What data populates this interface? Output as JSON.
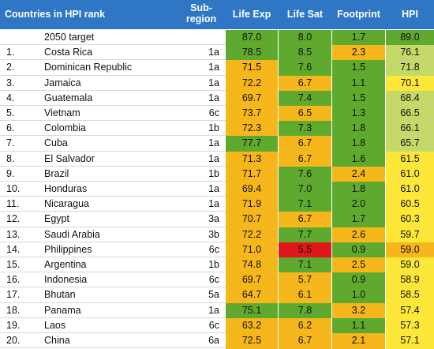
{
  "header": {
    "country": "Countries in HPI rank",
    "subregion": "Sub-\nregion",
    "cols": [
      "Life Exp",
      "Life Sat",
      "Footprint",
      "HPI"
    ]
  },
  "colors": {
    "header": "#2f77c4",
    "green": "#5faa2e",
    "orange": "#f6b71c",
    "red": "#e3161b",
    "lightgreen": "#c5d96a",
    "yellow": "#fde83a"
  },
  "rows": [
    {
      "rank": "",
      "country": "2050 target",
      "sub": "",
      "vals": [
        "87.0",
        "8.0",
        "1.7",
        "89.0"
      ],
      "colors": [
        "green",
        "green",
        "green",
        "green"
      ]
    },
    {
      "rank": "1.",
      "country": "Costa Rica",
      "sub": "1a",
      "vals": [
        "78.5",
        "8.5",
        "2.3",
        "76.1"
      ],
      "colors": [
        "green",
        "green",
        "orange",
        "lightgreen"
      ]
    },
    {
      "rank": "2.",
      "country": "Dominican Republic",
      "sub": "1a",
      "vals": [
        "71.5",
        "7.6",
        "1.5",
        "71.8"
      ],
      "colors": [
        "orange",
        "green",
        "green",
        "lightgreen"
      ]
    },
    {
      "rank": "3.",
      "country": "Jamaica",
      "sub": "1a",
      "vals": [
        "72.2",
        "6.7",
        "1.1",
        "70.1"
      ],
      "colors": [
        "orange",
        "orange",
        "green",
        "yellow"
      ]
    },
    {
      "rank": "4.",
      "country": "Guatemala",
      "sub": "1a",
      "vals": [
        "69.7",
        "7.4",
        "1.5",
        "68.4"
      ],
      "colors": [
        "orange",
        "green",
        "green",
        "lightgreen"
      ]
    },
    {
      "rank": "5.",
      "country": "Vietnam",
      "sub": "6c",
      "vals": [
        "73.7",
        "6.5",
        "1.3",
        "66.5"
      ],
      "colors": [
        "orange",
        "orange",
        "green",
        "lightgreen"
      ]
    },
    {
      "rank": "6.",
      "country": "Colombia",
      "sub": "1b",
      "vals": [
        "72.3",
        "7.3",
        "1.8",
        "66.1"
      ],
      "colors": [
        "orange",
        "green",
        "green",
        "lightgreen"
      ]
    },
    {
      "rank": "7.",
      "country": "Cuba",
      "sub": "1a",
      "vals": [
        "77.7",
        "6.7",
        "1.8",
        "65.7"
      ],
      "colors": [
        "green",
        "orange",
        "green",
        "lightgreen"
      ]
    },
    {
      "rank": "8.",
      "country": "El Salvador",
      "sub": "1a",
      "vals": [
        "71.3",
        "6.7",
        "1.6",
        "61.5"
      ],
      "colors": [
        "orange",
        "orange",
        "green",
        "yellow"
      ]
    },
    {
      "rank": "9.",
      "country": "Brazil",
      "sub": "1b",
      "vals": [
        "71.7",
        "7.6",
        "2.4",
        "61.0"
      ],
      "colors": [
        "orange",
        "green",
        "orange",
        "yellow"
      ]
    },
    {
      "rank": "10.",
      "country": "Honduras",
      "sub": "1a",
      "vals": [
        "69.4",
        "7.0",
        "1.8",
        "61.0"
      ],
      "colors": [
        "orange",
        "green",
        "green",
        "yellow"
      ]
    },
    {
      "rank": "11.",
      "country": "Nicaragua",
      "sub": "1a",
      "vals": [
        "71.9",
        "7.1",
        "2.0",
        "60.5"
      ],
      "colors": [
        "orange",
        "green",
        "green",
        "yellow"
      ]
    },
    {
      "rank": "12.",
      "country": "Egypt",
      "sub": "3a",
      "vals": [
        "70.7",
        "6.7",
        "1.7",
        "60.3"
      ],
      "colors": [
        "orange",
        "orange",
        "green",
        "yellow"
      ]
    },
    {
      "rank": "13.",
      "country": "Saudi Arabia",
      "sub": "3b",
      "vals": [
        "72.2",
        "7.7",
        "2.6",
        "59.7"
      ],
      "colors": [
        "orange",
        "green",
        "orange",
        "yellow"
      ]
    },
    {
      "rank": "14.",
      "country": "Philippines",
      "sub": "6c",
      "vals": [
        "71.0",
        "5.5",
        "0.9",
        "59.0"
      ],
      "colors": [
        "orange",
        "red",
        "green",
        "orange"
      ]
    },
    {
      "rank": "15.",
      "country": "Argentina",
      "sub": "1b",
      "vals": [
        "74.8",
        "7.1",
        "2.5",
        "59.0"
      ],
      "colors": [
        "orange",
        "green",
        "orange",
        "yellow"
      ]
    },
    {
      "rank": "16.",
      "country": "Indonesia",
      "sub": "6c",
      "vals": [
        "69.7",
        "5.7",
        "0.9",
        "58.9"
      ],
      "colors": [
        "orange",
        "orange",
        "green",
        "yellow"
      ]
    },
    {
      "rank": "17.",
      "country": "Bhutan",
      "sub": "5a",
      "vals": [
        "64.7",
        "6.1",
        "1.0",
        "58.5"
      ],
      "colors": [
        "orange",
        "orange",
        "green",
        "yellow"
      ]
    },
    {
      "rank": "18.",
      "country": "Panama",
      "sub": "1a",
      "vals": [
        "75.1",
        "7.8",
        "3.2",
        "57.4"
      ],
      "colors": [
        "green",
        "green",
        "orange",
        "yellow"
      ]
    },
    {
      "rank": "19.",
      "country": "Laos",
      "sub": "6c",
      "vals": [
        "63.2",
        "6.2",
        "1.1",
        "57.3"
      ],
      "colors": [
        "orange",
        "orange",
        "green",
        "yellow"
      ]
    },
    {
      "rank": "20.",
      "country": "China",
      "sub": "6a",
      "vals": [
        "72.5",
        "6.7",
        "2.1",
        "57.1"
      ],
      "colors": [
        "orange",
        "orange",
        "orange",
        "yellow"
      ]
    }
  ]
}
